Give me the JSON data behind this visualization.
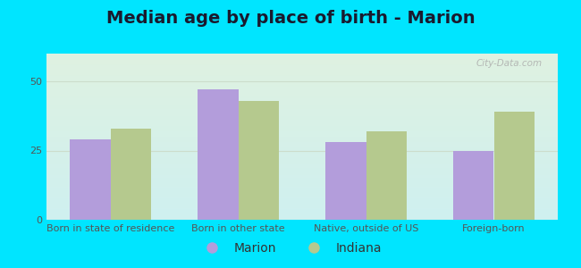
{
  "title": "Median age by place of birth - Marion",
  "categories": [
    "Born in state of residence",
    "Born in other state",
    "Native, outside of US",
    "Foreign-born"
  ],
  "marion_values": [
    29,
    47,
    28,
    25
  ],
  "indiana_values": [
    33,
    43,
    32,
    39
  ],
  "marion_color": "#b39ddb",
  "indiana_color": "#b5c98e",
  "ylim": [
    0,
    60
  ],
  "yticks": [
    0,
    25,
    50
  ],
  "background_outer": "#00e5ff",
  "background_inner_top": "#dff2e1",
  "background_inner_bottom": "#cff0f0",
  "grid_color": "#ccddcc",
  "bar_width": 0.32,
  "legend_marion": "Marion",
  "legend_indiana": "Indiana",
  "title_fontsize": 14,
  "tick_fontsize": 8,
  "legend_fontsize": 10,
  "watermark": "City-Data.com"
}
